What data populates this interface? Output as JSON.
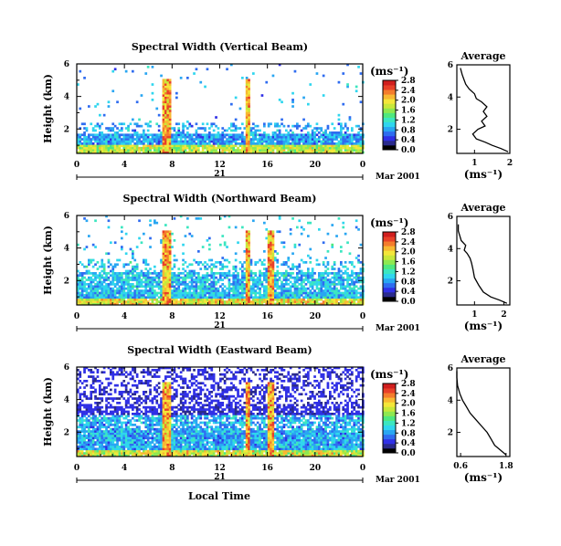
{
  "figure": {
    "xlabel": "Local Time",
    "date_label": "Mar 2001",
    "day_label": "21",
    "ylabel": "Height (km)",
    "unit_label": "(ms⁻¹)",
    "avg_title": "Average",
    "avg_xlabel": "(ms⁻¹)",
    "colormap": [
      "#000000",
      "#2a2a8c",
      "#3030e6",
      "#2f6cf0",
      "#29a6f2",
      "#2fd6ee",
      "#3ce6c0",
      "#4fe87e",
      "#8ee850",
      "#c8e83a",
      "#f4e63a",
      "#f8b832",
      "#f47c2c",
      "#e84028",
      "#d01e1e"
    ]
  },
  "chart_data": [
    {
      "type": "heatmap",
      "title": "Spectral Width (Vertical Beam)",
      "xlim": [
        0,
        24
      ],
      "ylim": [
        0.5,
        6
      ],
      "xticks": [
        "0",
        "4",
        "8",
        "12",
        "16",
        "20",
        "0"
      ],
      "yticks": [
        "2",
        "4",
        "6"
      ],
      "colorbar_ticks": [
        "0.0",
        "0.4",
        "0.8",
        "1.2",
        "1.6",
        "2.0",
        "2.4",
        "2.8"
      ],
      "colorbar_range": [
        0,
        2.8
      ],
      "avg": {
        "xticks": [
          "1",
          "2"
        ],
        "xlim": [
          0.5,
          2
        ],
        "ylim": [
          0.5,
          6
        ],
        "profile": [
          {
            "x": 1.95,
            "y": 0.6
          },
          {
            "x": 1.75,
            "y": 0.8
          },
          {
            "x": 1.5,
            "y": 1.0
          },
          {
            "x": 1.3,
            "y": 1.2
          },
          {
            "x": 1.05,
            "y": 1.4
          },
          {
            "x": 0.95,
            "y": 1.7
          },
          {
            "x": 1.1,
            "y": 2.0
          },
          {
            "x": 1.3,
            "y": 2.2
          },
          {
            "x": 1.2,
            "y": 2.5
          },
          {
            "x": 1.35,
            "y": 2.8
          },
          {
            "x": 1.25,
            "y": 3.1
          },
          {
            "x": 1.35,
            "y": 3.4
          },
          {
            "x": 1.2,
            "y": 3.7
          },
          {
            "x": 1.05,
            "y": 3.9
          },
          {
            "x": 1.0,
            "y": 4.2
          },
          {
            "x": 0.85,
            "y": 4.5
          },
          {
            "x": 0.75,
            "y": 4.8
          },
          {
            "x": 0.7,
            "y": 5.1
          },
          {
            "x": 0.65,
            "y": 5.4
          },
          {
            "x": 0.6,
            "y": 5.8
          }
        ]
      }
    },
    {
      "type": "heatmap",
      "title": "Spectral Width (Northward Beam)",
      "xlim": [
        0,
        24
      ],
      "ylim": [
        0.5,
        6
      ],
      "xticks": [
        "0",
        "4",
        "8",
        "12",
        "16",
        "20",
        "0"
      ],
      "yticks": [
        "2",
        "4",
        "6"
      ],
      "colorbar_ticks": [
        "0.0",
        "0.4",
        "0.8",
        "1.2",
        "1.6",
        "2.0",
        "2.4",
        "2.8"
      ],
      "colorbar_range": [
        0,
        2.8
      ],
      "avg": {
        "xticks": [
          "1",
          "2"
        ],
        "xlim": [
          0.4,
          2.2
        ],
        "ylim": [
          0.5,
          6
        ],
        "profile": [
          {
            "x": 2.1,
            "y": 0.6
          },
          {
            "x": 1.85,
            "y": 0.8
          },
          {
            "x": 1.55,
            "y": 1.0
          },
          {
            "x": 1.3,
            "y": 1.3
          },
          {
            "x": 1.15,
            "y": 1.7
          },
          {
            "x": 1.0,
            "y": 2.2
          },
          {
            "x": 0.95,
            "y": 2.7
          },
          {
            "x": 0.9,
            "y": 3.1
          },
          {
            "x": 0.85,
            "y": 3.4
          },
          {
            "x": 0.75,
            "y": 3.7
          },
          {
            "x": 0.65,
            "y": 3.9
          },
          {
            "x": 0.7,
            "y": 4.2
          },
          {
            "x": 0.55,
            "y": 4.5
          },
          {
            "x": 0.5,
            "y": 4.8
          },
          {
            "x": 0.45,
            "y": 5.1
          },
          {
            "x": 0.45,
            "y": 5.5
          }
        ]
      }
    },
    {
      "type": "heatmap",
      "title": "Spectral Width (Eastward Beam)",
      "xlim": [
        0,
        24
      ],
      "ylim": [
        0.5,
        6
      ],
      "xticks": [
        "0",
        "4",
        "8",
        "12",
        "16",
        "20",
        "0"
      ],
      "yticks": [
        "2",
        "4",
        "6"
      ],
      "colorbar_ticks": [
        "0.0",
        "0.4",
        "0.8",
        "1.2",
        "1.6",
        "2.0",
        "2.4",
        "2.8"
      ],
      "colorbar_range": [
        0,
        2.8
      ],
      "avg": {
        "xticks": [
          "0.6",
          "1.8"
        ],
        "xlim": [
          0.5,
          1.9
        ],
        "ylim": [
          0.5,
          6
        ],
        "profile": [
          {
            "x": 1.8,
            "y": 0.6
          },
          {
            "x": 1.65,
            "y": 0.9
          },
          {
            "x": 1.5,
            "y": 1.2
          },
          {
            "x": 1.4,
            "y": 1.6
          },
          {
            "x": 1.3,
            "y": 2.0
          },
          {
            "x": 1.15,
            "y": 2.4
          },
          {
            "x": 1.0,
            "y": 2.8
          },
          {
            "x": 0.85,
            "y": 3.2
          },
          {
            "x": 0.75,
            "y": 3.6
          },
          {
            "x": 0.65,
            "y": 4.0
          },
          {
            "x": 0.58,
            "y": 4.4
          },
          {
            "x": 0.52,
            "y": 4.9
          },
          {
            "x": 0.5,
            "y": 5.4
          },
          {
            "x": 0.5,
            "y": 5.8
          }
        ]
      }
    }
  ]
}
